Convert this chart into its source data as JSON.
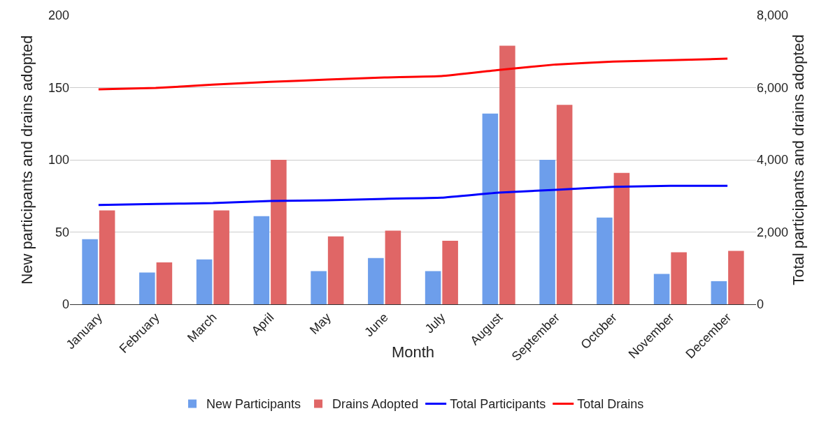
{
  "chart_data": {
    "type": "bar",
    "xlabel": "Month",
    "ylabel": "New participants and drains adopted",
    "y2label": "Total participants and drains adopted",
    "categories": [
      "January",
      "February",
      "March",
      "April",
      "May",
      "June",
      "July",
      "August",
      "September",
      "October",
      "November",
      "December"
    ],
    "series": [
      {
        "name": "New Participants",
        "color": "#6d9eeb",
        "values": [
          45,
          22,
          31,
          61,
          23,
          32,
          23,
          132,
          100,
          60,
          21,
          16
        ]
      },
      {
        "name": "Drains Adopted",
        "color": "#e06666",
        "values": [
          65,
          29,
          65,
          100,
          47,
          51,
          44,
          179,
          138,
          91,
          36,
          37
        ]
      },
      {
        "name": "Total Participants",
        "type": "line",
        "axis": "y2",
        "color": "#0000ff",
        "values": [
          2750,
          2780,
          2800,
          2860,
          2880,
          2920,
          2950,
          3090,
          3170,
          3250,
          3280,
          3280
        ]
      },
      {
        "name": "Total Drains",
        "type": "line",
        "axis": "y2",
        "color": "#ff0000",
        "values": [
          5950,
          5990,
          6080,
          6160,
          6220,
          6280,
          6320,
          6490,
          6640,
          6720,
          6760,
          6800
        ]
      }
    ],
    "ylim": [
      0,
      200
    ],
    "yticks": [
      0,
      50,
      100,
      150,
      200
    ],
    "y2lim": [
      0,
      8000
    ],
    "y2ticks": [
      0,
      {
        "value": 2000,
        "label": "2,000"
      },
      {
        "value": 4000,
        "label": "4,000"
      },
      {
        "value": 6000,
        "label": "6,000"
      },
      {
        "value": 8000,
        "label": "8,000"
      }
    ],
    "grid": "y",
    "legend": "bottom",
    "marker": "none",
    "line_style": "solid"
  }
}
